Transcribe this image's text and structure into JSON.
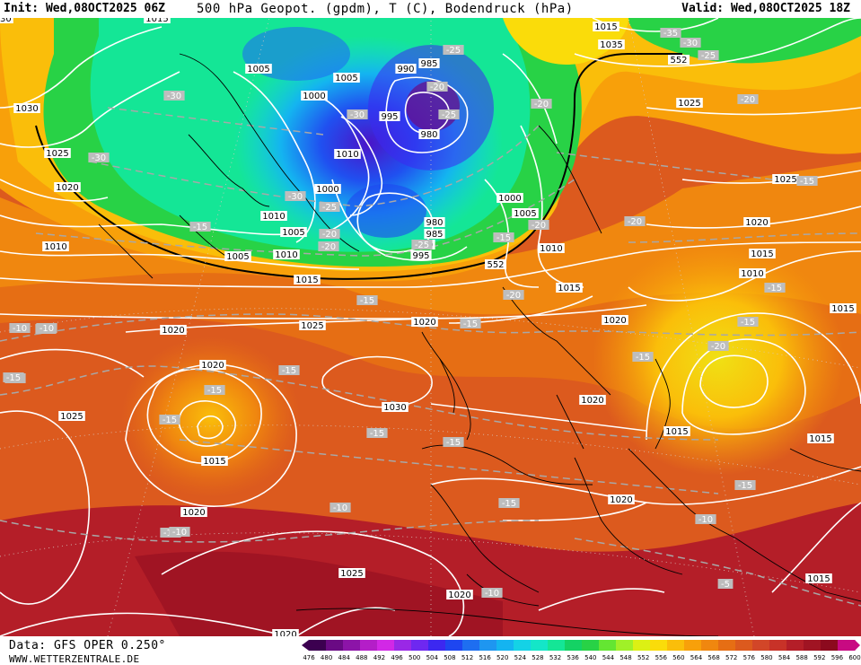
{
  "header": {
    "init": "Init: Wed,08OCT2025 06Z",
    "title": "500 hPa Geopot. (gpdm), T (C), Bodendruck (hPa)",
    "valid": "Valid: Wed,08OCT2025 18Z"
  },
  "footer": {
    "source": "Data: GFS OPER 0.250°",
    "website": "WWW.WETTERZENTRALE.DE"
  },
  "colorbar": {
    "labels": [
      "476",
      "480",
      "484",
      "488",
      "492",
      "496",
      "500",
      "504",
      "508",
      "512",
      "516",
      "520",
      "524",
      "528",
      "532",
      "536",
      "540",
      "544",
      "548",
      "552",
      "556",
      "560",
      "564",
      "568",
      "572",
      "576",
      "580",
      "584",
      "588",
      "592",
      "596",
      "600"
    ],
    "colors": [
      "#3c0050",
      "#6a0a84",
      "#8c14a8",
      "#b41ec8",
      "#d228e6",
      "#9a28e6",
      "#6e28f0",
      "#3c28f0",
      "#1e46f0",
      "#1e6ef0",
      "#1e96f0",
      "#14b4f0",
      "#14d2e6",
      "#14e6c8",
      "#14e696",
      "#14d264",
      "#28d246",
      "#64e632",
      "#a0f028",
      "#dcf014",
      "#fadc0a",
      "#fabe0a",
      "#f8a00a",
      "#f0870f",
      "#e66e14",
      "#dc5a1e",
      "#d24628",
      "#c83228",
      "#b41e28",
      "#a01423",
      "#8c0a1e",
      "#c80a82"
    ]
  },
  "isobars": [
    {
      "label": "1015",
      "pos": "top-left edge"
    },
    {
      "label": "1030",
      "pos": "west"
    },
    {
      "label": "1025",
      "pos": "west"
    },
    {
      "label": "1020",
      "pos": "west"
    },
    {
      "label": "1010",
      "pos": "west"
    },
    {
      "label": "1005",
      "pos": "greenland"
    },
    {
      "label": "1000",
      "pos": "greenland"
    },
    {
      "label": "1005",
      "pos": "greenland"
    },
    {
      "label": "990",
      "pos": "low"
    },
    {
      "label": "985",
      "pos": "low"
    },
    {
      "label": "995",
      "pos": "low"
    },
    {
      "label": "980",
      "pos": "low"
    },
    {
      "label": "1010",
      "pos": "low"
    },
    {
      "label": "1000",
      "pos": "low"
    },
    {
      "label": "1010",
      "pos": "low"
    },
    {
      "label": "1005",
      "pos": "low"
    },
    {
      "label": "980",
      "pos": "low2"
    },
    {
      "label": "985",
      "pos": "low2"
    },
    {
      "label": "990",
      "pos": "low2"
    },
    {
      "label": "995",
      "pos": "low2"
    },
    {
      "label": "1000",
      "pos": "scandinavia"
    },
    {
      "label": "1005",
      "pos": "scandinavia"
    },
    {
      "label": "1010",
      "pos": "scandinavia"
    },
    {
      "label": "1005",
      "pos": "atlantic"
    },
    {
      "label": "1010",
      "pos": "atlantic"
    },
    {
      "label": "1015",
      "pos": "atlantic"
    },
    {
      "label": "1025",
      "pos": "atlantic"
    },
    {
      "label": "1020",
      "pos": "atlantic"
    },
    {
      "label": "1020",
      "pos": "uk"
    },
    {
      "label": "1020",
      "pos": "high"
    },
    {
      "label": "1015",
      "pos": "high"
    },
    {
      "label": "1025",
      "pos": "high"
    },
    {
      "label": "1030",
      "pos": "iberia"
    },
    {
      "label": "1020",
      "pos": "south"
    },
    {
      "label": "1025",
      "pos": "south"
    },
    {
      "label": "1020",
      "pos": "bottom"
    },
    {
      "label": "1020",
      "pos": "africa"
    },
    {
      "label": "1020",
      "pos": "med"
    },
    {
      "label": "1015",
      "pos": "europe"
    },
    {
      "label": "1020",
      "pos": "europe"
    },
    {
      "label": "1010",
      "pos": "east"
    },
    {
      "label": "1015",
      "pos": "east"
    },
    {
      "label": "1020",
      "pos": "east"
    },
    {
      "label": "1025",
      "pos": "northeast"
    },
    {
      "label": "1025",
      "pos": "russia"
    },
    {
      "label": "1020",
      "pos": "russia"
    },
    {
      "label": "1015",
      "pos": "russia"
    },
    {
      "label": "1015",
      "pos": "balkans"
    },
    {
      "label": "1015",
      "pos": "turkey"
    },
    {
      "label": "1015",
      "pos": "east edge"
    },
    {
      "label": "1015",
      "pos": "far east"
    },
    {
      "label": "1035",
      "pos": "arctic"
    },
    {
      "label": "1030",
      "pos": "arctic"
    }
  ],
  "geopotential_labels": [
    {
      "label": "552",
      "pos": "north"
    },
    {
      "label": "552",
      "pos": "scandinavia"
    }
  ],
  "temperature_labels": [
    "-30",
    "-30",
    "-30",
    "-30",
    "-25",
    "-25",
    "-20",
    "-25",
    "-20",
    "-20",
    "-20",
    "-35",
    "-30",
    "-25",
    "-20",
    "-15",
    "-15",
    "-15",
    "-15",
    "-15",
    "-15",
    "-15",
    "-15",
    "-15",
    "-15",
    "-15",
    "-15",
    "-20",
    "-20",
    "-20",
    "-10",
    "-10",
    "-10",
    "-10",
    "-10",
    "-10",
    "-10",
    "-10",
    "-10",
    "-5",
    "-15",
    "-15",
    "-15",
    "-20",
    "-25",
    "-15"
  ]
}
